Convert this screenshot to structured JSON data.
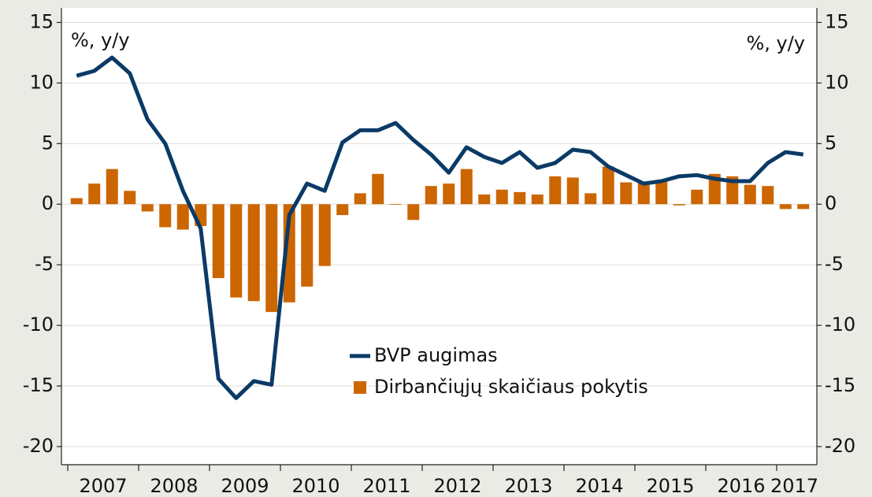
{
  "chart_data": {
    "type": "bar_line",
    "ylabel": "%, y/y",
    "y2label": "%, y/y",
    "categories": [
      "2007",
      null,
      null,
      null,
      "2008",
      null,
      null,
      null,
      "2009",
      null,
      null,
      null,
      "2010",
      null,
      null,
      null,
      "2011",
      null,
      null,
      null,
      "2012",
      null,
      null,
      null,
      "2013",
      null,
      null,
      null,
      "2014",
      null,
      null,
      null,
      "2015",
      null,
      null,
      null,
      "2016",
      null,
      null,
      null,
      "2017",
      null
    ],
    "series": [
      {
        "name": "BVP augimas",
        "type": "line",
        "color": "#0b3a66",
        "values": [
          10.6,
          11.0,
          12.1,
          10.8,
          7.0,
          5.0,
          1.1,
          -2.0,
          -14.4,
          -16.0,
          -14.6,
          -14.9,
          -0.9,
          1.7,
          1.1,
          5.1,
          6.1,
          6.1,
          6.7,
          5.3,
          4.1,
          2.6,
          4.7,
          3.9,
          3.4,
          4.3,
          3.0,
          3.4,
          4.5,
          4.3,
          3.1,
          2.4,
          1.7,
          1.9,
          2.3,
          2.4,
          2.1,
          1.9,
          1.9,
          3.4,
          4.3,
          4.1
        ]
      },
      {
        "name": "Dirbančiųjų skaičiaus pokytis",
        "type": "bar",
        "color": "#cc6600",
        "values": [
          0.5,
          1.7,
          2.9,
          1.1,
          -0.6,
          -1.9,
          -2.1,
          -1.8,
          -6.1,
          -7.7,
          -8.0,
          -8.9,
          -8.1,
          -6.8,
          -5.1,
          -0.9,
          0.9,
          2.5,
          0.0,
          -1.3,
          1.5,
          1.7,
          2.9,
          0.8,
          1.2,
          1.0,
          0.8,
          2.3,
          2.2,
          0.9,
          3.1,
          1.8,
          1.8,
          1.9,
          -0.1,
          1.2,
          2.5,
          2.3,
          1.6,
          1.5,
          -0.4,
          -0.4
        ]
      }
    ],
    "ylim": [
      -21.5,
      16.2
    ],
    "yticks": [
      -20,
      -15,
      -10,
      -5,
      0,
      5,
      10,
      15
    ],
    "y2lim": [
      -21.5,
      16.2
    ],
    "y2ticks": [
      -20,
      -15,
      -10,
      -5,
      0,
      5,
      10,
      15
    ],
    "grid": true,
    "legend": "center"
  }
}
